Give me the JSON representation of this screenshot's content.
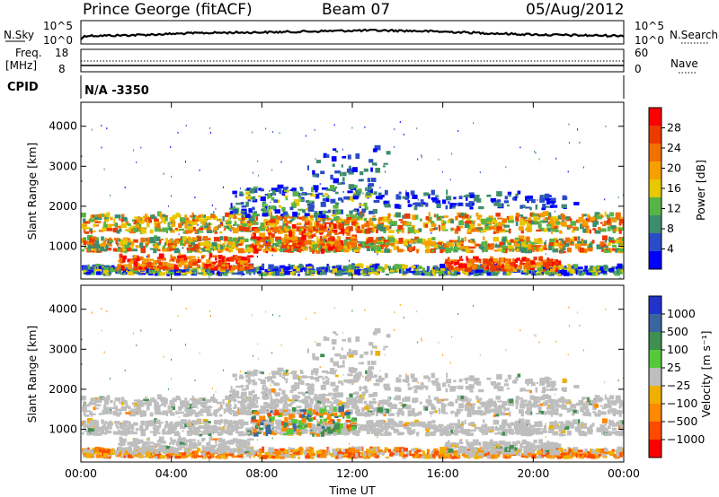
{
  "header": {
    "station": "Prince George (fitACF)",
    "beam": "Beam 07",
    "date": "05/Aug/2012"
  },
  "panels": {
    "nsky": {
      "left_label": "N.Sky",
      "right_label": "N.Search",
      "left_ticks": [
        "10^5",
        "10^0"
      ],
      "right_ticks": [
        "10^5",
        "10^0"
      ]
    },
    "freq": {
      "left_label_1": "Freq.",
      "left_label_2": "[MHz]",
      "left_ticks": [
        "18",
        "8"
      ],
      "right_label": "Nave",
      "right_ticks": [
        "60",
        "0"
      ]
    },
    "cpid": {
      "label": "CPID",
      "value": "N/A  -3350"
    }
  },
  "colors": {
    "power_scale": [
      "#0000ff",
      "#2a4cc8",
      "#3e8c6e",
      "#57b447",
      "#e8c800",
      "#f5a000",
      "#f27000",
      "#ec3a00",
      "#ff0000"
    ],
    "velocity_scale": [
      "#2233cc",
      "#3a66a0",
      "#3f8f50",
      "#55c93a",
      "#bebebe",
      "#f0b000",
      "#ff8800",
      "#ff4a00",
      "#ff0000"
    ],
    "noise_line": "#000000"
  },
  "chart_data": [
    {
      "type": "heatmap",
      "title": "",
      "xlabel": "Time UT",
      "ylabel": "Slant Range [km]",
      "x_ticks": [
        "00:00",
        "04:00",
        "08:00",
        "12:00",
        "16:00",
        "20:00",
        "00:00"
      ],
      "xlim": [
        0,
        24
      ],
      "y_ticks": [
        "1000",
        "2000",
        "3000",
        "4000"
      ],
      "ylim": [
        180,
        4600
      ],
      "colorbar": {
        "label": "Power [dB]",
        "ticks": [
          "4",
          "8",
          "12",
          "16",
          "20",
          "24",
          "28"
        ],
        "range": [
          0,
          30
        ]
      }
    },
    {
      "type": "heatmap",
      "title": "",
      "xlabel": "Time UT",
      "ylabel": "Slant Range [km]",
      "x_ticks": [
        "00:00",
        "04:00",
        "08:00",
        "12:00",
        "16:00",
        "20:00",
        "00:00"
      ],
      "xlim": [
        0,
        24
      ],
      "y_ticks": [
        "1000",
        "2000",
        "3000",
        "4000"
      ],
      "ylim": [
        180,
        4600
      ],
      "colorbar": {
        "label": "Velocity  [m s⁻¹]",
        "ticks": [
          "1000",
          "500",
          "100",
          "25",
          "−25",
          "−100",
          "−500",
          "−1000"
        ],
        "range": [
          -1200,
          1200
        ]
      }
    }
  ]
}
